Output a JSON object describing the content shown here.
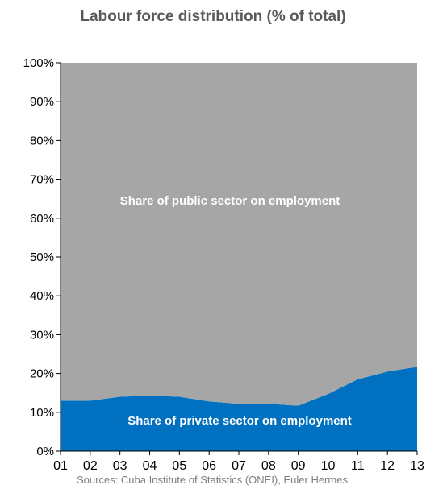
{
  "chart_data": {
    "type": "area",
    "title": "Labour force distribution (% of total)",
    "x": [
      "01",
      "02",
      "03",
      "04",
      "05",
      "06",
      "07",
      "08",
      "09",
      "10",
      "11",
      "12",
      "13"
    ],
    "yticks": [
      "0%",
      "10%",
      "20%",
      "30%",
      "40%",
      "50%",
      "60%",
      "70%",
      "80%",
      "90%",
      "100%"
    ],
    "ylim": [
      0,
      100
    ],
    "stacked": true,
    "series": [
      {
        "name": "Share of private sector on employment",
        "color": "#0070c0",
        "values": [
          13.0,
          13.0,
          14.0,
          14.3,
          14.0,
          12.8,
          12.2,
          12.2,
          11.7,
          14.7,
          18.5,
          20.5,
          21.7
        ]
      },
      {
        "name": "Share of public sector on employment",
        "color": "#a6a6a6",
        "values": [
          87.0,
          87.0,
          86.0,
          85.7,
          86.0,
          87.2,
          87.8,
          87.8,
          88.3,
          85.3,
          81.5,
          79.5,
          78.3
        ]
      }
    ],
    "grid": false,
    "legend": "inline labels",
    "source": "Sources: Cuba Institute of Statistics (ONEI), Euler Hermes"
  }
}
